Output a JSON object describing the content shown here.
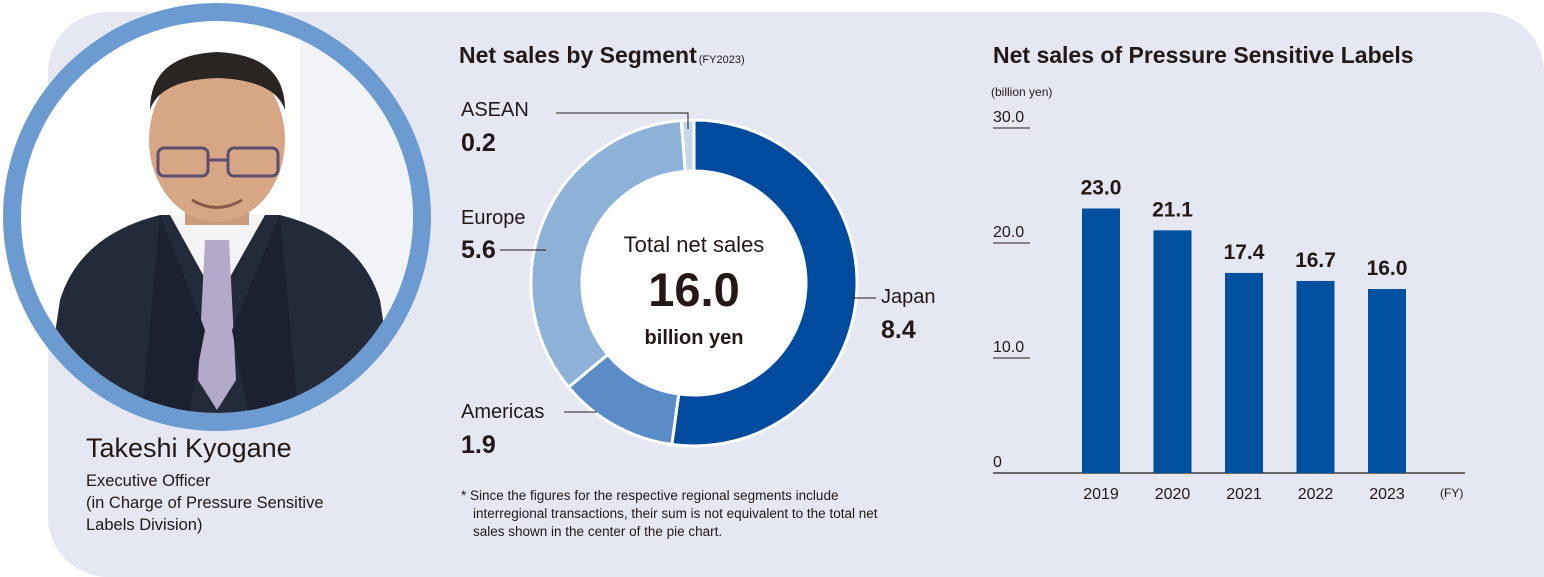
{
  "profile": {
    "name": "Takeshi Kyogane",
    "role_lines": [
      "Executive Officer",
      "(in Charge of Pressure Sensitive",
      "Labels Division)"
    ]
  },
  "segment_chart": {
    "title": "Net sales by Segment",
    "title_suffix": "(FY2023)",
    "center_line1": "Total net sales",
    "center_value": "16.0",
    "center_unit": "billion yen",
    "footnote_lines": [
      "* Since the figures for the respective regional segments include",
      "interregional transactions, their sum is not equivalent to the total net",
      "sales shown in the center of the pie chart."
    ]
  },
  "bar_chart": {
    "title": "Net sales of Pressure Sensitive Labels",
    "unit_label": "(billion yen)",
    "x_unit": "(FY)"
  },
  "colors": {
    "panel_bg": "#e5e7f3",
    "japan": "#004b9e",
    "americas": "#5b8cc7",
    "europe": "#8eb1d8",
    "asean": "#c6d7ec",
    "bar": "#0050a0",
    "ring": "#6b9bd1"
  },
  "chart_data": [
    {
      "type": "pie",
      "title": "Net sales by Segment",
      "categories": [
        "Japan",
        "Americas",
        "Europe",
        "ASEAN"
      ],
      "values": [
        8.4,
        1.9,
        5.6,
        0.2
      ],
      "labels": [
        "8.4",
        "1.9",
        "5.6",
        "0.2"
      ],
      "total": 16.0,
      "donut": true
    },
    {
      "type": "bar",
      "title": "Net sales of Pressure Sensitive Labels",
      "categories": [
        "2019",
        "2020",
        "2021",
        "2022",
        "2023"
      ],
      "values": [
        23.0,
        21.1,
        17.4,
        16.7,
        16.0
      ],
      "value_labels": [
        "23.0",
        "21.1",
        "17.4",
        "16.7",
        "16.0"
      ],
      "ylabel": "(billion yen)",
      "xlabel": "(FY)",
      "ylim": [
        0,
        30
      ],
      "yticks": [
        "0",
        "10.0",
        "20.0",
        "30.0"
      ],
      "grid": false
    }
  ]
}
